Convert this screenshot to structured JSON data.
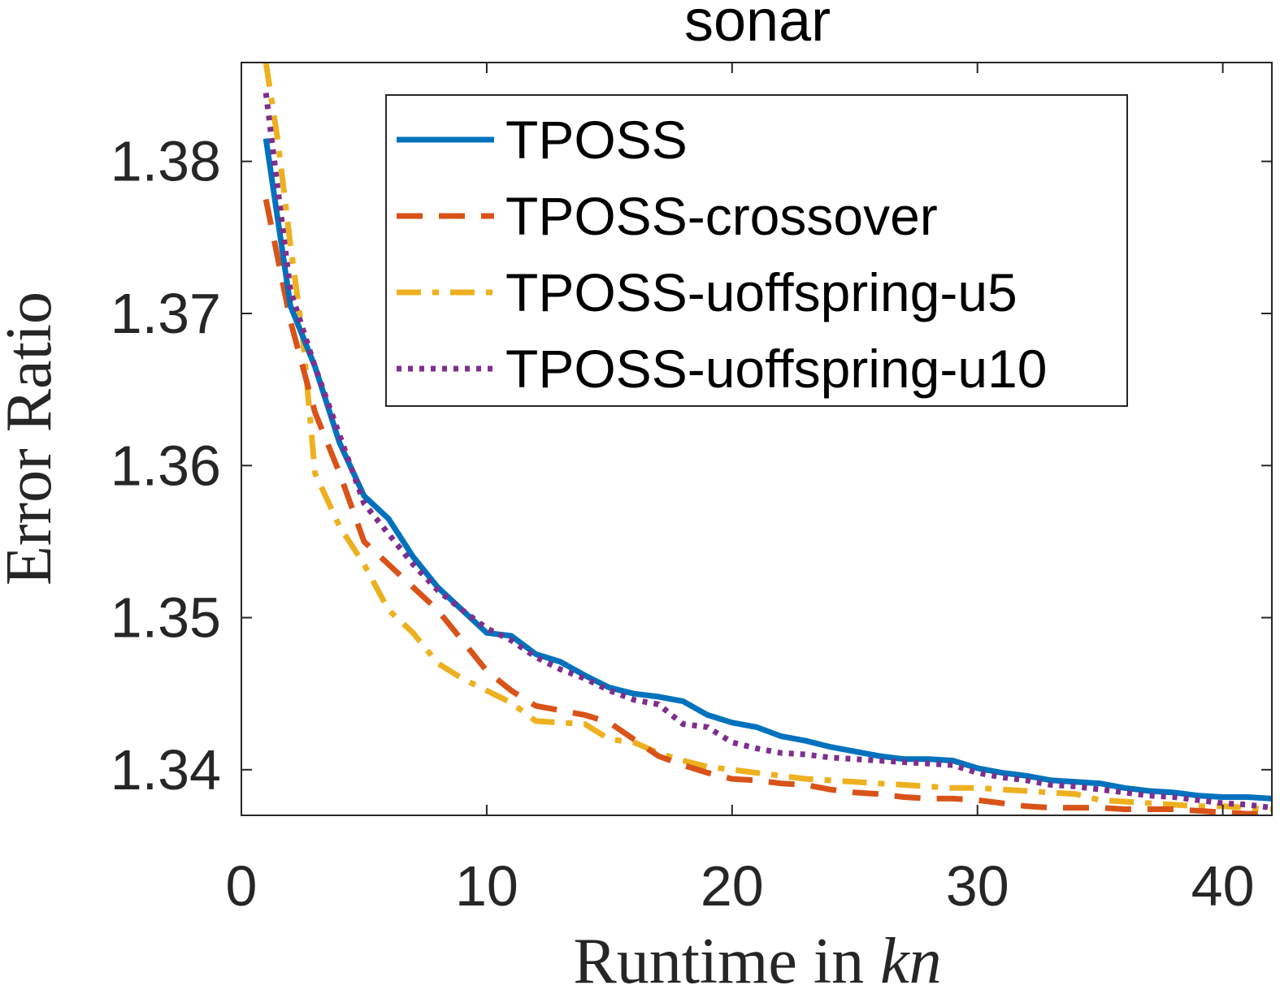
{
  "chart_data": {
    "type": "line",
    "title": "sonar",
    "xlabel": "Runtime in",
    "xlabel_var": "kn",
    "ylabel": "Error Ratio",
    "xlim": [
      0,
      42
    ],
    "ylim": [
      1.337,
      1.3865
    ],
    "xticks": [
      0,
      10,
      20,
      30,
      40
    ],
    "xtick_labels": [
      "0",
      "10",
      "20",
      "30",
      "40"
    ],
    "yticks": [
      1.34,
      1.35,
      1.36,
      1.37,
      1.38
    ],
    "ytick_labels": [
      "1.34",
      "1.35",
      "1.36",
      "1.37",
      "1.38"
    ],
    "grid": false,
    "legend_position": "top-right",
    "series": [
      {
        "name": "TPOSS",
        "color": "#0072BD",
        "style": "solid",
        "x": [
          1,
          2,
          3,
          4,
          5,
          6,
          7,
          8,
          9,
          10,
          11,
          12,
          13,
          14,
          15,
          16,
          17,
          18,
          19,
          20,
          21,
          22,
          23,
          24,
          25,
          26,
          27,
          28,
          29,
          30,
          31,
          32,
          33,
          34,
          35,
          36,
          37,
          38,
          39,
          40,
          41,
          42
        ],
        "y": [
          1.3815,
          1.3705,
          1.3665,
          1.3615,
          1.358,
          1.3565,
          1.354,
          1.352,
          1.3505,
          1.349,
          1.3488,
          1.3476,
          1.3471,
          1.3462,
          1.3454,
          1.345,
          1.3448,
          1.3445,
          1.3436,
          1.3431,
          1.3428,
          1.3422,
          1.3419,
          1.3415,
          1.3412,
          1.3409,
          1.3407,
          1.3407,
          1.3406,
          1.3401,
          1.3398,
          1.3396,
          1.3393,
          1.3392,
          1.3391,
          1.3388,
          1.3386,
          1.3385,
          1.3383,
          1.3382,
          1.3382,
          1.3381
        ]
      },
      {
        "name": "TPOSS-crossover",
        "color": "#D95319",
        "style": "dashed",
        "x": [
          1,
          2,
          3,
          4,
          5,
          6,
          7,
          8,
          9,
          10,
          11,
          12,
          13,
          14,
          15,
          16,
          17,
          18,
          19,
          20,
          21,
          22,
          23,
          24,
          25,
          26,
          27,
          28,
          29,
          30,
          31,
          32,
          33,
          34,
          35,
          36,
          37,
          38,
          39,
          40,
          41,
          42
        ],
        "y": [
          1.3775,
          1.3695,
          1.3635,
          1.3595,
          1.355,
          1.3535,
          1.352,
          1.3505,
          1.3485,
          1.3465,
          1.3452,
          1.3442,
          1.3439,
          1.3436,
          1.3431,
          1.342,
          1.3409,
          1.3403,
          1.3398,
          1.3394,
          1.3393,
          1.3391,
          1.339,
          1.3387,
          1.3385,
          1.3384,
          1.3382,
          1.3381,
          1.3381,
          1.338,
          1.3378,
          1.3376,
          1.3375,
          1.3375,
          1.3375,
          1.3374,
          1.3374,
          1.3374,
          1.3373,
          1.3372,
          1.3371,
          1.3371
        ]
      },
      {
        "name": "TPOSS-uoffspring-u5",
        "color": "#EDB120",
        "style": "dashdot",
        "x": [
          1,
          1.5,
          2,
          2.5,
          3,
          4,
          5,
          6,
          7,
          8,
          9,
          10,
          11,
          12,
          13,
          14,
          15,
          16,
          17,
          18,
          19,
          20,
          21,
          22,
          23,
          24,
          25,
          26,
          27,
          28,
          29,
          30,
          31,
          32,
          33,
          34,
          35,
          36,
          37,
          38,
          39,
          40,
          41,
          42
        ],
        "y": [
          1.3865,
          1.3812,
          1.3745,
          1.3685,
          1.3595,
          1.356,
          1.3535,
          1.3505,
          1.349,
          1.347,
          1.346,
          1.3452,
          1.3444,
          1.3432,
          1.3431,
          1.343,
          1.342,
          1.3418,
          1.3411,
          1.3406,
          1.3402,
          1.34,
          1.3398,
          1.3396,
          1.3394,
          1.3393,
          1.3392,
          1.3391,
          1.339,
          1.3389,
          1.3388,
          1.3388,
          1.3387,
          1.3386,
          1.3385,
          1.3384,
          1.338,
          1.3379,
          1.3378,
          1.3377,
          1.3376,
          1.3376,
          1.3375,
          1.3374
        ]
      },
      {
        "name": "TPOSS-uoffspring-u10",
        "color": "#7E2F8E",
        "style": "dotted",
        "x": [
          1,
          2,
          3,
          4,
          5,
          6,
          7,
          8,
          9,
          10,
          11,
          12,
          13,
          14,
          15,
          16,
          17,
          18,
          19,
          20,
          21,
          22,
          23,
          24,
          25,
          26,
          27,
          28,
          29,
          30,
          31,
          32,
          33,
          34,
          35,
          36,
          37,
          38,
          39,
          40,
          41,
          42
        ],
        "y": [
          1.3845,
          1.3715,
          1.3665,
          1.362,
          1.3575,
          1.3555,
          1.3535,
          1.3518,
          1.3505,
          1.3493,
          1.3485,
          1.3474,
          1.3466,
          1.346,
          1.3452,
          1.3446,
          1.3443,
          1.343,
          1.3428,
          1.3418,
          1.3414,
          1.3411,
          1.341,
          1.3408,
          1.3407,
          1.3406,
          1.3405,
          1.3404,
          1.3403,
          1.3398,
          1.3395,
          1.3393,
          1.339,
          1.3389,
          1.3387,
          1.3385,
          1.3383,
          1.3382,
          1.338,
          1.3378,
          1.3377,
          1.3375
        ]
      }
    ]
  }
}
